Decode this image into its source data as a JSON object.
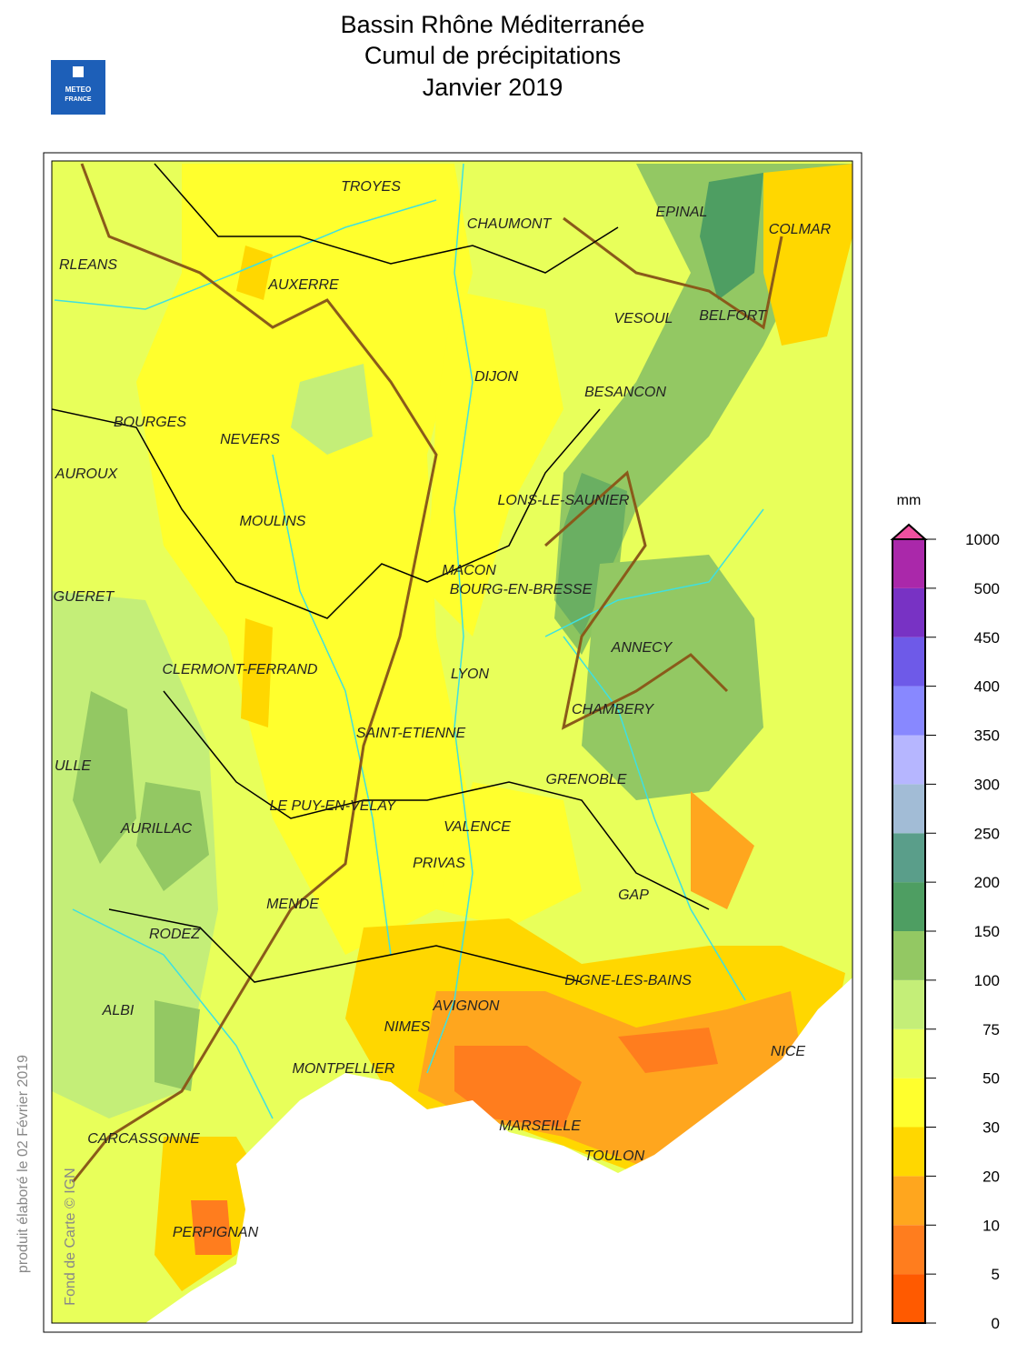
{
  "header": {
    "title_lines": [
      "Bassin Rhône Méditerranée",
      "Cumul de précipitations",
      "Janvier 2019"
    ],
    "logo": [
      "METEO",
      "FRANCE"
    ]
  },
  "legend": {
    "unit": "mm",
    "levels": [
      0,
      5,
      10,
      20,
      30,
      50,
      75,
      100,
      150,
      200,
      250,
      300,
      350,
      400,
      450,
      500,
      1000
    ],
    "colors": [
      "#ff5a00",
      "#ff7d1e",
      "#ffa61e",
      "#ffd700",
      "#ffff2d",
      "#e8ff5a",
      "#c4ee78",
      "#93c863",
      "#4e9e62",
      "#5a9e8a",
      "#a2bcd6",
      "#b6b6ff",
      "#8888ff",
      "#6e5ae8",
      "#7832c4",
      "#aa28aa"
    ],
    "overflow_color": "#f050a0"
  },
  "map": {
    "cities": [
      "TROYES",
      "CHAUMONT",
      "EPINAL",
      "COLMAR",
      "RLEANS",
      "AUXERRE",
      "VESOUL",
      "BELFORT",
      "DIJON",
      "BESANCON",
      "BOURGES",
      "NEVERS",
      "AUROUX",
      "LONS-LE-SAUNIER",
      "MOULINS",
      "MACON",
      "BOURG-EN-BRESSE",
      "GUERET",
      "ANNECY",
      "CLERMONT-FERRAND",
      "LYON",
      "CHAMBERY",
      "SAINT-ETIENNE",
      "ULLE",
      "GRENOBLE",
      "LE PUY-EN-VELAY",
      "VALENCE",
      "AURILLAC",
      "PRIVAS",
      "GAP",
      "MENDE",
      "RODEZ",
      "DIGNE-LES-BAINS",
      "AVIGNON",
      "ALBI",
      "NIMES",
      "NICE",
      "MONTPELLIER",
      "MARSEILLE",
      "CARCASSONNE",
      "TOULON",
      "PERPIGNAN"
    ]
  },
  "footer": {
    "produced": "produit élaboré le 02 Février 2019",
    "credit": "Fond de Carte © IGN"
  }
}
